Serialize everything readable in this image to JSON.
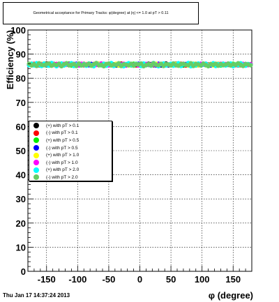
{
  "figure": {
    "title": "Geometrical acceptance for Primary Tracks: φ(degree) at |η| <= 1.0 at pT > 0.11",
    "timestamp": "Thu Jan 17 14:37:24 2013"
  },
  "chart_data": {
    "type": "scatter",
    "xlabel": "φ (degree)",
    "ylabel": "Efficiency (%)",
    "xlim": [
      -180,
      180
    ],
    "ylim": [
      0,
      100
    ],
    "x_ticks": [
      -150,
      -100,
      -50,
      0,
      50,
      100,
      150
    ],
    "y_ticks": [
      0,
      10,
      20,
      30,
      40,
      50,
      60,
      70,
      80,
      90,
      100
    ],
    "grid": true,
    "legend_position": "middle-left",
    "x_step": 4,
    "x_start": -178,
    "series": [
      {
        "name": "(+) with pT > 0.1",
        "color": "#000000",
        "values": [
          85.6,
          85.9,
          85.4,
          86.0,
          85.7,
          85.3,
          85.8,
          86.1,
          85.5,
          85.6,
          85.9,
          85.2,
          85.7,
          86.0,
          85.4,
          85.8,
          85.5,
          85.9,
          85.3,
          85.6,
          86.0,
          85.7,
          85.4,
          85.8,
          85.6,
          85.9,
          85.3,
          85.7,
          86.0,
          85.5,
          85.8,
          85.4,
          85.6,
          86.1,
          85.7,
          85.3,
          85.9,
          85.6,
          85.5,
          85.8,
          86.0,
          85.4,
          85.7,
          85.9,
          85.3,
          85.6,
          85.8,
          85.5,
          86.0,
          85.7,
          85.4,
          85.9,
          85.6,
          85.3,
          85.8,
          86.1,
          85.5,
          85.7,
          85.9,
          85.4,
          85.6,
          85.8,
          85.3,
          85.7,
          86.0,
          85.5,
          85.9,
          85.6,
          85.4,
          85.8,
          85.7,
          86.0,
          85.5,
          85.6,
          85.9,
          85.3,
          85.8,
          85.6,
          86.0,
          85.4,
          85.7,
          85.9,
          85.5,
          85.8,
          85.6,
          85.4,
          85.9,
          85.7,
          85.5,
          85.8
        ]
      },
      {
        "name": "(-) with pT > 0.1",
        "color": "#ff0000",
        "values": [
          85.8,
          85.5,
          86.0,
          85.6,
          85.3,
          85.9,
          85.7,
          85.4,
          86.1,
          85.8,
          85.5,
          85.9,
          85.6,
          85.3,
          85.8,
          86.0,
          85.4,
          85.7,
          85.9,
          85.5,
          85.6,
          85.8,
          86.0,
          85.3,
          85.7,
          85.5,
          85.9,
          85.6,
          85.4,
          85.8,
          86.0,
          85.7,
          85.5,
          85.9,
          85.3,
          85.6,
          85.8,
          86.1,
          85.4,
          85.7,
          85.5,
          85.9,
          85.6,
          85.3,
          85.8,
          86.0,
          85.7,
          85.4,
          85.6,
          85.9,
          85.5,
          85.8,
          85.3,
          85.7,
          86.0,
          85.6,
          85.4,
          85.9,
          85.7,
          85.5,
          85.8,
          86.0,
          85.6,
          85.3,
          85.9,
          85.7,
          85.5,
          85.8,
          85.4,
          85.6,
          86.0,
          85.7,
          85.3,
          85.9,
          85.5,
          85.8,
          85.6,
          85.4,
          85.9,
          85.7,
          86.0,
          85.5,
          85.6,
          85.8,
          85.3,
          85.7,
          85.9,
          85.5,
          85.6,
          85.8
        ]
      },
      {
        "name": "(+) with pT > 0.5",
        "color": "#00ee00",
        "values": [
          85.7,
          86.0,
          85.5,
          85.8,
          85.4,
          85.9,
          85.6,
          85.3,
          85.8,
          86.0,
          85.7,
          85.4,
          85.9,
          85.6,
          85.5,
          85.8,
          86.1,
          85.3,
          85.7,
          85.9,
          85.6,
          85.4,
          85.8,
          85.5,
          86.0,
          85.7,
          85.3,
          85.9,
          85.6,
          85.8,
          85.4,
          85.7,
          86.0,
          85.5,
          85.8,
          85.6,
          85.3,
          85.9,
          85.7,
          85.5,
          85.8,
          85.4,
          86.0,
          85.6,
          85.9,
          85.7,
          85.3,
          85.8,
          85.5,
          85.6,
          86.0,
          85.4,
          85.7,
          85.9,
          85.6,
          85.8,
          85.3,
          85.5,
          86.1,
          85.7,
          85.6,
          85.9,
          85.4,
          85.8,
          85.5,
          85.7,
          86.0,
          85.3,
          85.6,
          85.9,
          85.8,
          85.4,
          85.7,
          85.5,
          86.0,
          85.6,
          85.9,
          85.3,
          85.8,
          85.7,
          85.5,
          85.6,
          86.0,
          85.4,
          85.9,
          85.7,
          85.8,
          85.5,
          85.6,
          85.7
        ]
      },
      {
        "name": "(-) with pT > 0.5",
        "color": "#0000ff",
        "values": [
          85.5,
          85.8,
          85.6,
          85.9,
          86.0,
          85.4,
          85.7,
          85.5,
          85.8,
          85.3,
          85.9,
          85.6,
          86.0,
          85.7,
          85.4,
          85.8,
          85.5,
          85.6,
          85.9,
          86.0,
          85.3,
          85.7,
          85.8,
          85.5,
          85.4,
          85.9,
          85.6,
          86.0,
          85.7,
          85.3,
          85.8,
          85.5,
          85.9,
          85.6,
          85.7,
          85.4,
          86.0,
          85.8,
          85.5,
          85.3,
          85.9,
          85.7,
          85.6,
          85.8,
          86.0,
          85.4,
          85.5,
          85.9,
          85.7,
          85.8,
          85.6,
          85.3,
          86.0,
          85.5,
          85.7,
          85.9,
          85.4,
          85.6,
          85.8,
          86.1,
          85.5,
          85.3,
          85.7,
          85.9,
          85.6,
          85.8,
          85.4,
          86.0,
          85.7,
          85.5,
          85.6,
          85.9,
          85.8,
          85.3,
          85.7,
          85.4,
          86.0,
          85.6,
          85.5,
          85.8,
          85.9,
          85.7,
          85.3,
          85.6,
          85.8,
          85.5,
          85.4,
          85.9,
          85.7,
          85.6
        ]
      },
      {
        "name": "(+) with pT > 1.0",
        "color": "#ffff00",
        "values": [
          85.9,
          85.6,
          85.8,
          85.4,
          85.7,
          86.0,
          85.5,
          85.9,
          85.6,
          85.3,
          85.8,
          85.7,
          85.4,
          86.0,
          85.9,
          85.5,
          85.6,
          85.8,
          85.3,
          85.7,
          86.1,
          85.6,
          85.5,
          85.9,
          85.8,
          85.4,
          85.7,
          85.6,
          86.0,
          85.3,
          85.9,
          85.7,
          85.5,
          85.8,
          85.6,
          86.0,
          85.4,
          85.7,
          85.9,
          85.5,
          85.3,
          85.8,
          85.6,
          86.0,
          85.7,
          85.5,
          85.9,
          85.4,
          85.8,
          85.6,
          85.7,
          86.0,
          85.3,
          85.9,
          85.5,
          85.8,
          85.6,
          85.7,
          85.4,
          86.0,
          85.9,
          85.5,
          85.8,
          85.6,
          85.3,
          85.7,
          85.9,
          86.0,
          85.4,
          85.6,
          85.8,
          85.5,
          85.7,
          85.9,
          85.3,
          85.6,
          86.0,
          85.8,
          85.5,
          85.4,
          85.7,
          85.9,
          85.6,
          85.8,
          86.0,
          85.5,
          85.3,
          85.7,
          85.8,
          85.6
        ]
      },
      {
        "name": "(-) with pT > 1.0",
        "color": "#ff00ff",
        "values": [
          85.6,
          85.4,
          85.9,
          85.7,
          85.5,
          85.8,
          86.0,
          85.6,
          85.3,
          85.9,
          85.7,
          85.8,
          85.5,
          85.4,
          86.0,
          85.6,
          85.9,
          85.7,
          85.5,
          85.8,
          85.3,
          86.0,
          85.6,
          85.7,
          85.9,
          85.4,
          85.8,
          85.5,
          85.6,
          86.1,
          85.7,
          85.9,
          85.3,
          85.8,
          85.5,
          85.6,
          85.9,
          85.7,
          86.0,
          85.4,
          85.8,
          85.6,
          85.5,
          85.9,
          85.3,
          85.7,
          86.0,
          85.8,
          85.6,
          85.4,
          85.9,
          85.5,
          85.7,
          85.8,
          86.0,
          85.3,
          85.6,
          85.9,
          85.7,
          85.5,
          85.8,
          85.4,
          86.0,
          85.6,
          85.9,
          85.7,
          85.3,
          85.5,
          85.8,
          86.0,
          85.6,
          85.9,
          85.4,
          85.7,
          85.8,
          85.5,
          85.3,
          86.0,
          85.6,
          85.9,
          85.7,
          85.8,
          85.5,
          85.4,
          85.6,
          86.0,
          85.9,
          85.7,
          85.5,
          85.8
        ]
      },
      {
        "name": "(+) with pT > 2.0",
        "color": "#00ffff",
        "values": [
          85.4,
          86.0,
          85.3,
          86.2,
          85.5,
          85.1,
          86.1,
          85.7,
          85.2,
          86.3,
          85.6,
          85.0,
          85.9,
          86.1,
          85.3,
          85.8,
          85.4,
          86.2,
          85.1,
          85.7,
          86.0,
          85.3,
          85.9,
          85.2,
          86.1,
          85.5,
          85.0,
          86.2,
          85.6,
          85.4,
          86.0,
          85.2,
          85.8,
          86.3,
          85.1,
          85.6,
          86.1,
          85.4,
          85.0,
          85.9,
          86.2,
          85.5,
          85.3,
          86.0,
          85.7,
          85.1,
          86.1,
          85.4,
          85.8,
          85.2,
          86.3,
          85.6,
          85.0,
          85.9,
          86.1,
          85.3,
          85.7,
          86.0,
          85.2,
          85.5,
          86.2,
          85.1,
          85.8,
          85.6,
          86.3,
          85.0,
          85.9,
          85.4,
          86.1,
          85.3,
          85.7,
          86.0,
          85.2,
          85.6,
          86.2,
          85.1,
          85.8,
          85.5,
          86.0,
          85.3,
          85.9,
          86.1,
          85.0,
          85.7,
          85.4,
          86.2,
          85.6,
          85.2,
          85.9,
          85.5
        ]
      },
      {
        "name": "(-) with pT > 2.0",
        "color": "#66cc66",
        "values": [
          86.0,
          85.3,
          85.8,
          85.1,
          86.2,
          85.6,
          85.4,
          85.9,
          86.1,
          85.2,
          85.7,
          85.5,
          86.0,
          85.0,
          85.8,
          86.2,
          85.4,
          85.6,
          85.9,
          85.1,
          86.1,
          85.3,
          85.7,
          85.5,
          86.0,
          85.2,
          85.8,
          86.3,
          85.4,
          85.6,
          85.0,
          85.9,
          86.1,
          85.3,
          85.7,
          85.5,
          86.2,
          85.1,
          85.8,
          85.6,
          85.4,
          86.0,
          85.2,
          85.9,
          85.7,
          86.1,
          85.0,
          85.5,
          85.8,
          85.3,
          86.2,
          85.6,
          85.4,
          86.0,
          85.1,
          85.9,
          85.7,
          85.3,
          86.1,
          85.5,
          85.2,
          85.8,
          86.0,
          85.6,
          85.4,
          86.2,
          85.1,
          85.9,
          85.7,
          85.3,
          86.1,
          85.5,
          85.0,
          85.8,
          85.6,
          86.0,
          85.2,
          85.9,
          85.4,
          85.7,
          86.1,
          85.3,
          85.8,
          85.5,
          86.2,
          85.6,
          85.1,
          85.9,
          85.7,
          85.4
        ]
      }
    ]
  }
}
